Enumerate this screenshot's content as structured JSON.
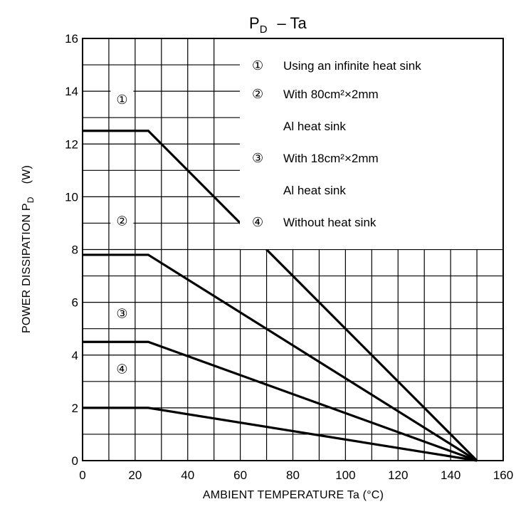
{
  "chart_data": {
    "type": "line",
    "title_main": "P",
    "title_sub": "D",
    "title_rest": "– Ta",
    "xlabel": "AMBIENT TEMPERATURE Ta (°C)",
    "ylabel_main": "POWER DISSIPATION P",
    "ylabel_sub": "D",
    "ylabel_unit": "(W)",
    "xlim": [
      0,
      160
    ],
    "ylim": [
      0,
      16
    ],
    "x_ticks": [
      "0",
      "20",
      "40",
      "60",
      "80",
      "100",
      "120",
      "140",
      "160"
    ],
    "y_ticks": [
      "0",
      "2",
      "4",
      "6",
      "8",
      "10",
      "12",
      "14",
      "16"
    ],
    "grid": true,
    "series": [
      {
        "marker": "①",
        "x": [
          0,
          25,
          150
        ],
        "y": [
          12.5,
          12.5,
          0
        ]
      },
      {
        "marker": "②",
        "x": [
          0,
          25,
          150
        ],
        "y": [
          7.8,
          7.8,
          0
        ]
      },
      {
        "marker": "③",
        "x": [
          0,
          25,
          150
        ],
        "y": [
          4.5,
          4.5,
          0
        ]
      },
      {
        "marker": "④",
        "x": [
          0,
          25,
          150
        ],
        "y": [
          2.0,
          2.0,
          0
        ]
      }
    ],
    "legend": [
      {
        "marker": "①",
        "text": "Using an infinite heat sink"
      },
      {
        "marker": "②",
        "text": "With 80cm²×2mm"
      },
      {
        "marker": "",
        "text": "Al heat sink"
      },
      {
        "marker": "③",
        "text": "With 18cm²×2mm"
      },
      {
        "marker": "",
        "text": "Al heat sink"
      },
      {
        "marker": "④",
        "text": "Without heat sink"
      }
    ],
    "legend_position": "top-right"
  }
}
